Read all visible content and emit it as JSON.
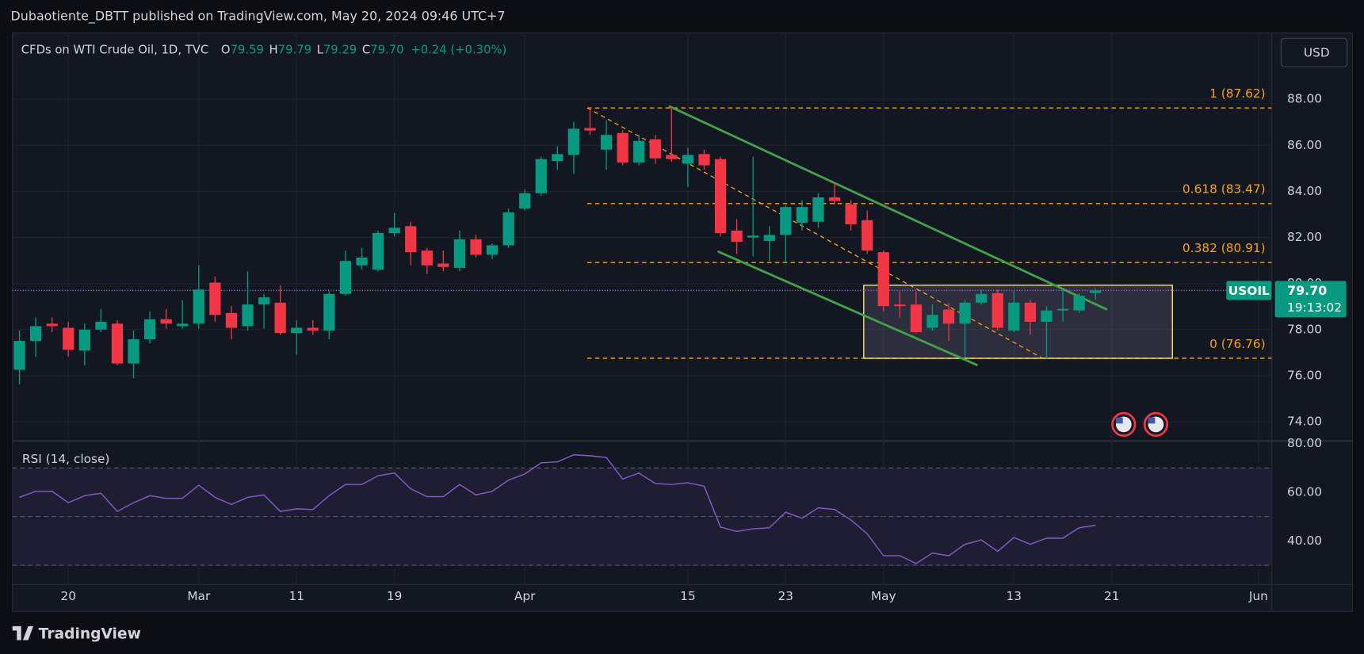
{
  "header": {
    "publisher": "Dubaotiente_DBTT published on TradingView.com, May 20, 2024 09:46 UTC+7",
    "symbol_title": "CFDs on WTI Crude Oil, 1D, TVC",
    "legend_values": [
      {
        "label": "O",
        "value": "79.59"
      },
      {
        "label": "H",
        "value": "79.79"
      },
      {
        "label": "L",
        "value": "79.29"
      },
      {
        "label": "C",
        "value": "79.70"
      }
    ],
    "change": "+0.24 (+0.30%)",
    "currency_button": "USD"
  },
  "chart_data": {
    "type": "candlestick",
    "up_color": "#089981",
    "down_color": "#f23645",
    "grid": true,
    "categories": [
      null,
      null,
      null,
      "20",
      null,
      null,
      null,
      null,
      null,
      null,
      null,
      "Mar",
      null,
      null,
      null,
      null,
      null,
      "11",
      null,
      null,
      null,
      null,
      null,
      "19",
      null,
      null,
      null,
      null,
      null,
      null,
      null,
      "Apr",
      null,
      null,
      null,
      null,
      null,
      null,
      null,
      null,
      null,
      "15",
      null,
      null,
      null,
      null,
      null,
      "23",
      null,
      null,
      null,
      null,
      null,
      "May",
      null,
      null,
      null,
      null,
      null,
      null,
      null,
      "13",
      null,
      null,
      null,
      null,
      null,
      "21",
      null,
      null,
      null,
      null,
      null,
      null,
      null,
      null,
      "Jun"
    ],
    "open": [
      76.26,
      77.51,
      78.26,
      78.08,
      77.09,
      78.0,
      78.26,
      76.53,
      77.58,
      78.45,
      78.15,
      78.26,
      80.04,
      78.72,
      78.15,
      79.09,
      79.17,
      77.85,
      78.08,
      77.96,
      79.55,
      80.79,
      80.6,
      82.19,
      82.49,
      81.43,
      80.87,
      80.68,
      81.92,
      81.25,
      81.66,
      83.25,
      83.92,
      85.32,
      85.58,
      86.75,
      85.81,
      86.53,
      85.25,
      86.26,
      85.58,
      85.2,
      85.62,
      85.4,
      82.3,
      82.0,
      81.85,
      82.11,
      82.64,
      82.68,
      83.74,
      83.43,
      82.75,
      81.36,
      79.09,
      79.09,
      78.08,
      78.87,
      78.26,
      79.17,
      79.58,
      77.96,
      79.17,
      78.34,
      78.83,
      78.83,
      79.59,
      null,
      null,
      null,
      null,
      null,
      null,
      null,
      null,
      null,
      null
    ],
    "high": [
      77.96,
      78.53,
      78.53,
      78.34,
      78.26,
      78.9,
      78.41,
      77.96,
      78.79,
      78.9,
      79.28,
      80.79,
      80.3,
      79.02,
      80.53,
      79.55,
      79.92,
      78.41,
      78.41,
      79.66,
      81.43,
      81.55,
      82.3,
      83.06,
      82.68,
      81.55,
      81.43,
      82.3,
      82.11,
      81.74,
      83.25,
      84.08,
      85.51,
      85.96,
      87.02,
      87.62,
      87.09,
      86.64,
      86.45,
      86.45,
      87.7,
      85.89,
      85.81,
      85.51,
      82.79,
      85.51,
      82.49,
      83.4,
      83.62,
      83.92,
      84.38,
      83.62,
      83.17,
      81.43,
      79.66,
      79.66,
      79.09,
      79.17,
      79.28,
      79.74,
      79.74,
      79.66,
      79.28,
      79.02,
      79.74,
      79.58,
      79.79,
      null,
      null,
      null,
      null,
      null,
      null,
      null,
      null,
      null,
      null
    ],
    "low": [
      75.62,
      76.83,
      77.89,
      76.83,
      76.45,
      77.89,
      76.45,
      75.89,
      77.4,
      78.04,
      78.04,
      78.04,
      78.34,
      77.58,
      77.96,
      78.04,
      77.77,
      76.91,
      77.77,
      77.58,
      79.47,
      80.6,
      80.53,
      82.04,
      80.79,
      80.42,
      80.53,
      80.53,
      81.13,
      81.06,
      81.55,
      83.17,
      83.81,
      84.94,
      84.75,
      86.45,
      84.94,
      85.13,
      85.13,
      85.2,
      85.28,
      84.19,
      84.94,
      82.04,
      81.28,
      81.17,
      80.98,
      80.91,
      82.3,
      82.42,
      83.43,
      82.3,
      81.28,
      78.79,
      78.53,
      77.85,
      77.96,
      77.51,
      76.83,
      79.09,
      77.96,
      77.89,
      77.77,
      76.76,
      78.34,
      78.72,
      79.29,
      null,
      null,
      null,
      null,
      null,
      null,
      null,
      null,
      null,
      null
    ],
    "close": [
      77.51,
      78.15,
      78.15,
      77.13,
      78.0,
      78.34,
      76.53,
      77.58,
      78.45,
      78.26,
      78.26,
      79.74,
      78.64,
      78.08,
      79.09,
      79.4,
      77.85,
      78.08,
      77.96,
      79.55,
      80.98,
      81.13,
      82.19,
      82.42,
      81.36,
      80.79,
      80.72,
      81.92,
      81.25,
      81.66,
      83.09,
      83.92,
      85.4,
      85.62,
      86.72,
      86.64,
      86.45,
      85.25,
      86.19,
      85.43,
      85.4,
      85.58,
      85.13,
      82.19,
      81.81,
      82.08,
      82.11,
      83.32,
      83.32,
      83.74,
      83.58,
      82.57,
      81.43,
      79.02,
      79.02,
      77.89,
      78.64,
      78.26,
      79.17,
      79.55,
      78.08,
      79.17,
      78.34,
      78.83,
      78.9,
      79.47,
      79.7,
      null,
      null,
      null,
      null,
      null,
      null,
      null,
      null,
      null,
      null
    ],
    "ylim": [
      73.17,
      90.87
    ],
    "yticks": [
      {
        "value": 74,
        "label": "74.00"
      },
      {
        "value": 76,
        "label": "76.00"
      },
      {
        "value": 78,
        "label": "78.00"
      },
      {
        "value": 80,
        "label": "80.00"
      },
      {
        "value": 82,
        "label": "82.00"
      },
      {
        "value": 84,
        "label": "84.00"
      },
      {
        "value": 86,
        "label": "86.00"
      },
      {
        "value": 88,
        "label": "88.00"
      }
    ],
    "fib_levels": [
      {
        "value": 87.62,
        "label": "1 (87.62)"
      },
      {
        "value": 83.47,
        "label": "0.618 (83.47)"
      },
      {
        "value": 80.91,
        "label": "0.382 (80.91)"
      },
      {
        "value": 76.76,
        "label": "0 (76.76)"
      }
    ],
    "fib_color": "#f7a21b",
    "last_price": {
      "value": 79.7,
      "label": "79.70",
      "symbol": "USOIL",
      "countdown": "19:13:02"
    },
    "indicator": {
      "type": "line",
      "title": "RSI (14, close)",
      "color": "#7e57c2",
      "values": [
        57.9,
        60.4,
        60.4,
        55.7,
        58.6,
        59.6,
        52.1,
        55.7,
        58.6,
        57.5,
        57.5,
        62.9,
        57.9,
        55,
        57.9,
        58.9,
        52.1,
        53.2,
        52.9,
        58.6,
        63.2,
        63.2,
        66.8,
        67.9,
        61.4,
        58.2,
        58.2,
        63.2,
        58.9,
        60.4,
        65,
        67.5,
        72.1,
        72.5,
        75.4,
        75,
        74.3,
        65.4,
        67.9,
        63.6,
        63.2,
        63.9,
        62.5,
        45.7,
        43.9,
        45,
        45.4,
        51.8,
        49.3,
        53.6,
        52.9,
        48.6,
        42.9,
        33.9,
        33.9,
        30.7,
        35,
        33.9,
        38.6,
        40.4,
        35.7,
        41.4,
        38.6,
        41.1,
        41.1,
        45.4,
        46.4,
        null,
        null,
        null,
        null,
        null,
        null,
        null,
        null,
        null,
        null
      ],
      "ylim": [
        22.1,
        81.1
      ],
      "yticks": [
        {
          "value": 40,
          "label": "40.00"
        },
        {
          "value": 60,
          "label": "60.00"
        },
        {
          "value": 80,
          "label": "80.00"
        }
      ],
      "levels": [
        30,
        50,
        70
      ]
    }
  },
  "footer": {
    "brand": "TradingView"
  }
}
